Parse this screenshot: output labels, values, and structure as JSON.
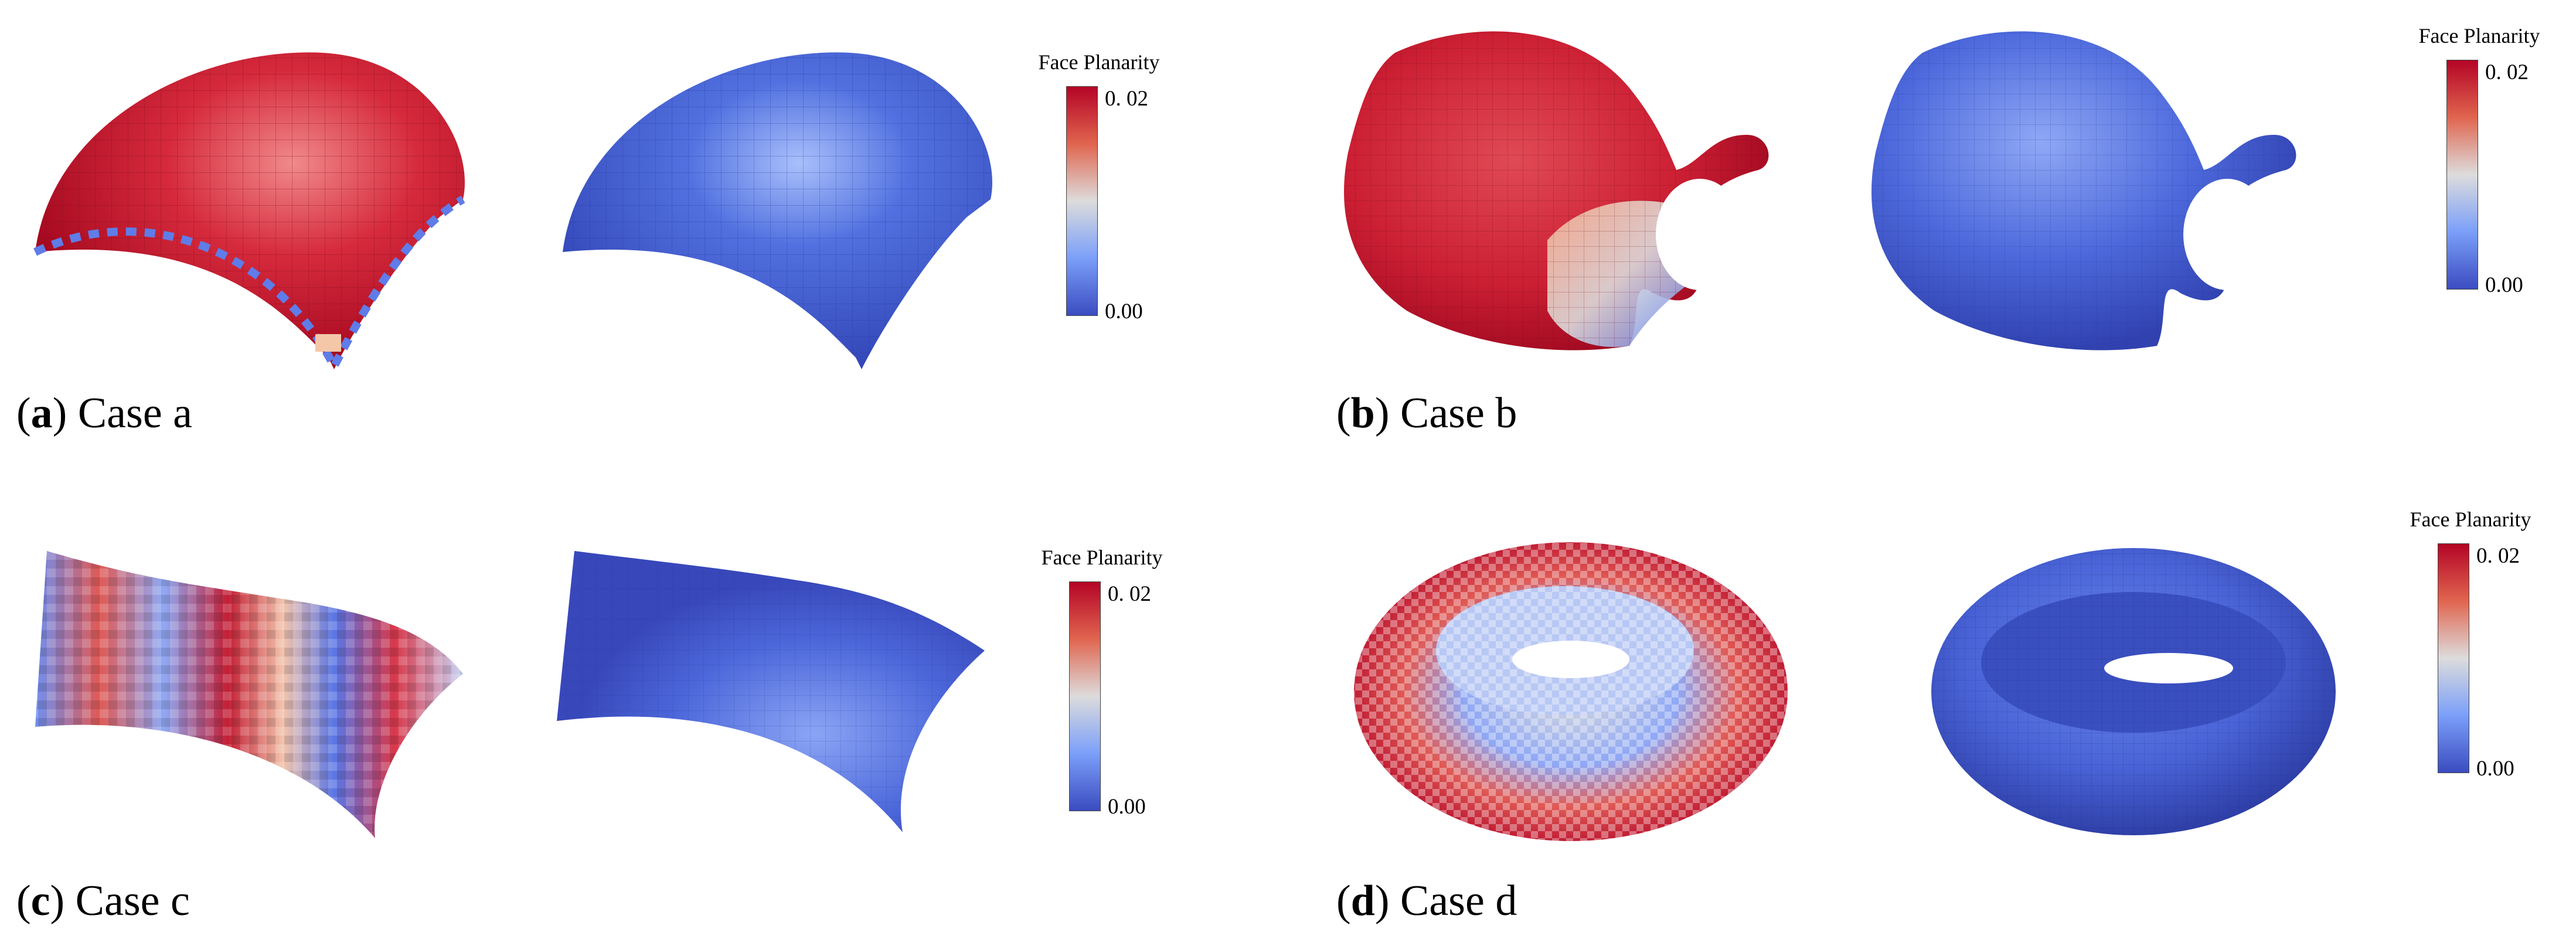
{
  "figure": {
    "panels": [
      {
        "id": "a",
        "letter": "a",
        "caption": "Case a"
      },
      {
        "id": "b",
        "letter": "b",
        "caption": "Case b"
      },
      {
        "id": "c",
        "letter": "c",
        "caption": "Case c"
      },
      {
        "id": "d",
        "letter": "d",
        "caption": "Case d"
      }
    ],
    "legend": {
      "title": "Face Planarity",
      "max_label": "0. 02",
      "min_label": "0.00",
      "max_value": 0.02,
      "min_value": 0.0
    },
    "colors": {
      "high": "#b40426",
      "mid": "#dddcdc",
      "low": "#3b4cc0",
      "optimized_surface": "#4a64dc"
    }
  }
}
